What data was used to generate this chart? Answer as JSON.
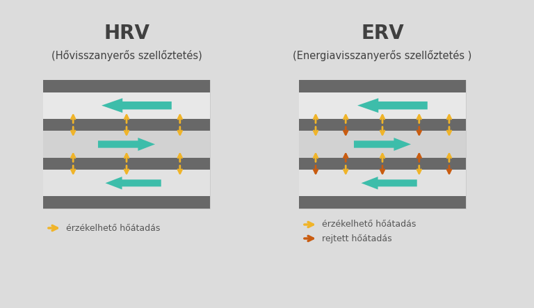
{
  "bg_color": "#dcdcdc",
  "hrv_title": "HRV",
  "hrv_subtitle": "(Hővisszanyerős szellőztetés)",
  "erv_title": "ERV",
  "erv_subtitle": "(Energiavisszanyerős szellőztetés )",
  "title_color": "#404040",
  "dark_bar_color": "#686868",
  "zone_upper_color": "#e8e8e8",
  "zone_center_color": "#d2d2d2",
  "zone_lower_color": "#e2e2e2",
  "panel_bg_color": "#f0f0f0",
  "yellow_color": "#f0b429",
  "orange_color": "#c95c10",
  "teal_color": "#3dbdaa",
  "legend_text_color": "#555555",
  "legend_yellow_label": "érzékelhető hőátadás",
  "legend_orange_label": "rejtett hőátadás"
}
